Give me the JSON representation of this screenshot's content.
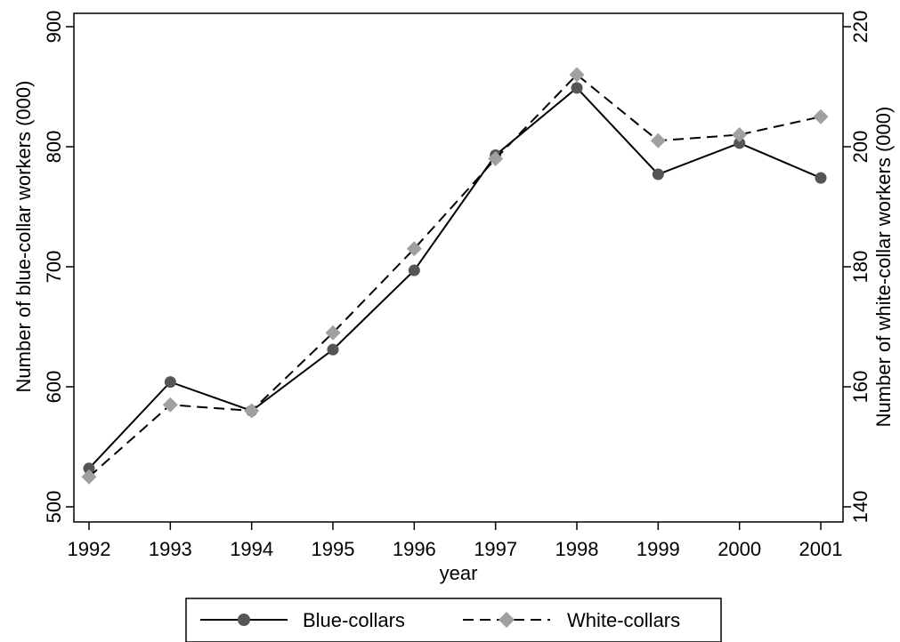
{
  "chart_data": {
    "type": "line",
    "x": [
      1992,
      1993,
      1994,
      1995,
      1996,
      1997,
      1998,
      1999,
      2000,
      2001
    ],
    "xlabel": "year",
    "xlim": [
      1992,
      2001
    ],
    "ylabel_left": "Number of blue-collar workers (000)",
    "ylabel_right": "Number of white-collar workers (000)",
    "ylim_left": [
      500,
      900
    ],
    "ylim_right": [
      140,
      220
    ],
    "yticks_left": [
      500,
      600,
      700,
      800,
      900
    ],
    "yticks_right": [
      140,
      160,
      180,
      200,
      220
    ],
    "grid": false,
    "legend_position": "bottom",
    "series": [
      {
        "name": "Blue-collars",
        "axis": "left",
        "marker": "circle",
        "line_style": "solid",
        "color": "#555555",
        "line_color": "#000000",
        "values": [
          532,
          604,
          580,
          631,
          697,
          793,
          849,
          777,
          803,
          774
        ]
      },
      {
        "name": "White-collars",
        "axis": "right",
        "marker": "diamond",
        "line_style": "dashed",
        "color": "#a0a0a0",
        "line_color": "#000000",
        "values": [
          145,
          157,
          156,
          169,
          183,
          198,
          212,
          201,
          202,
          205
        ]
      }
    ]
  }
}
